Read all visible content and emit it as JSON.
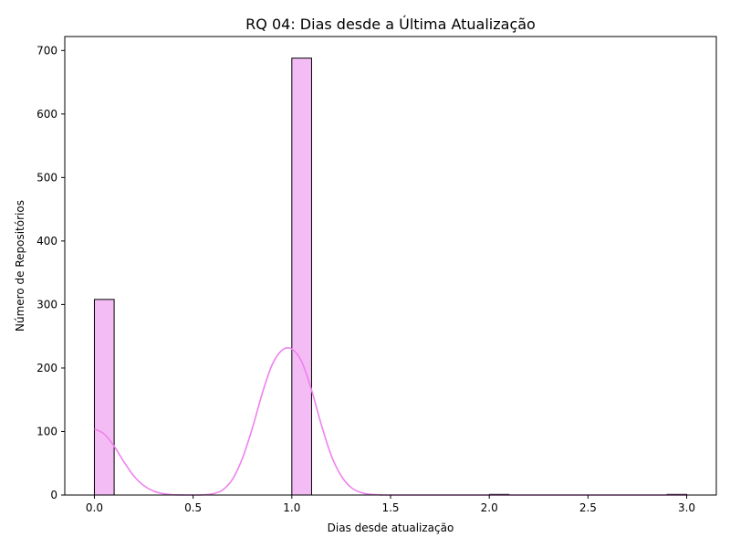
{
  "chart_data": {
    "type": "histogram",
    "title": "RQ 04: Dias desde a Última Atualização",
    "xlabel": "Dias desde atualização",
    "ylabel": "Número de Repositórios",
    "xlim": [
      -0.15,
      3.15
    ],
    "ylim": [
      0,
      722
    ],
    "x_ticks": [
      0.0,
      0.5,
      1.0,
      1.5,
      2.0,
      2.5,
      3.0
    ],
    "x_tick_labels": [
      "0.0",
      "0.5",
      "1.0",
      "1.5",
      "2.0",
      "2.5",
      "3.0"
    ],
    "y_ticks": [
      0,
      100,
      200,
      300,
      400,
      500,
      600,
      700
    ],
    "y_tick_labels": [
      "0",
      "100",
      "200",
      "300",
      "400",
      "500",
      "600",
      "700"
    ],
    "bin_width": 0.1,
    "bins": [
      {
        "x0": 0.0,
        "x1": 0.1,
        "count": 308
      },
      {
        "x0": 1.0,
        "x1": 1.1,
        "count": 688
      },
      {
        "x0": 2.0,
        "x1": 2.1,
        "count": 1
      },
      {
        "x0": 2.9,
        "x1": 3.0,
        "count": 1
      }
    ],
    "kde": {
      "x": [
        0.0,
        0.05,
        0.1,
        0.15,
        0.2,
        0.25,
        0.3,
        0.35,
        0.4,
        0.45,
        0.5,
        0.55,
        0.6,
        0.65,
        0.7,
        0.75,
        0.8,
        0.85,
        0.9,
        0.95,
        1.0,
        1.05,
        1.1,
        1.15,
        1.2,
        1.25,
        1.3,
        1.35,
        1.4,
        1.45,
        1.5,
        2.0,
        2.5,
        3.0
      ],
      "y": [
        104,
        96,
        77,
        52,
        30,
        15,
        6,
        2,
        0.5,
        0.1,
        0,
        0.3,
        2,
        8,
        25,
        58,
        105,
        160,
        205,
        228,
        230,
        210,
        165,
        110,
        62,
        30,
        12,
        4,
        1,
        0.3,
        0,
        0,
        0,
        0
      ]
    },
    "grid": false,
    "legend": "none",
    "colors": {
      "bar_fill": "#f4bcf4",
      "bar_edge": "#000000",
      "kde_line": "#ee82ee"
    }
  }
}
